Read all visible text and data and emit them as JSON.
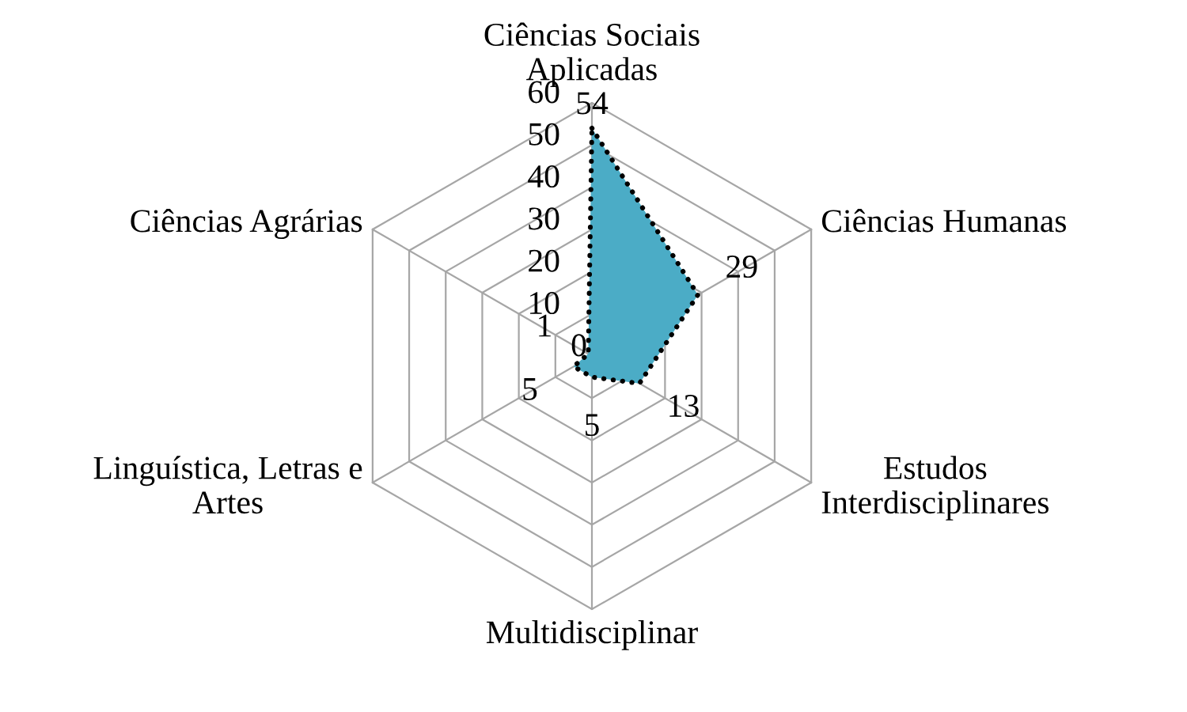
{
  "chart_data": {
    "type": "radar",
    "categories": [
      "Ciências Sociais\nAplicadas",
      "Ciências Humanas",
      "Estudos\nInterdisciplinares",
      "Multidisciplinar",
      "Linguística, Letras e\nArtes",
      "Ciências Agrárias"
    ],
    "series": [
      {
        "color": "#4bacc6",
        "values": [
          54,
          29,
          13,
          5,
          5,
          1
        ]
      }
    ],
    "ylim": [
      0,
      60
    ],
    "yticks": [
      0,
      10,
      20,
      30,
      40,
      50,
      60
    ],
    "grid": true,
    "data_labels": true,
    "line_style": "dotted"
  }
}
